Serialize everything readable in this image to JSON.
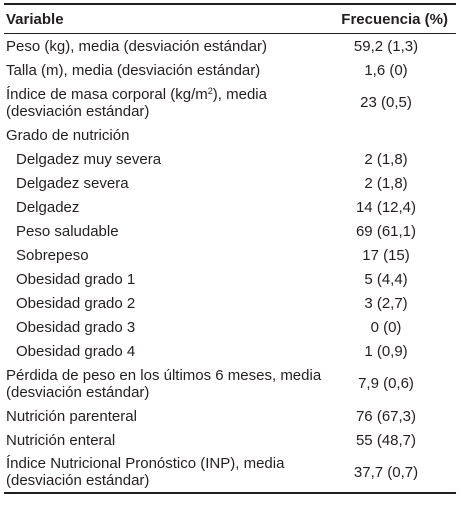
{
  "header": {
    "variable": "Variable",
    "frequency": "Frecuencia (%)"
  },
  "rows": [
    {
      "label": "Peso (kg), media (desviación estándar)",
      "value": "59,2 (1,3)"
    },
    {
      "label": "Talla (m), media (desviación estándar)",
      "value": "1,6 (0)"
    },
    {
      "label_before": "Índice de masa corporal (kg/m",
      "label_sup": "2",
      "label_after": "), media (desviación estándar)",
      "value": "23 (0,5)"
    },
    {
      "label": "Grado de nutrición",
      "value": ""
    },
    {
      "label": "Delgadez muy severa",
      "value": "2 (1,8)"
    },
    {
      "label": "Delgadez severa",
      "value": "2 (1,8)"
    },
    {
      "label": "Delgadez",
      "value": "14 (12,4)"
    },
    {
      "label": "Peso saludable",
      "value": "69 (61,1)"
    },
    {
      "label": "Sobrepeso",
      "value": "17 (15)"
    },
    {
      "label": "Obesidad grado 1",
      "value": "5 (4,4)"
    },
    {
      "label": "Obesidad grado 2",
      "value": "3 (2,7)"
    },
    {
      "label": "Obesidad grado 3",
      "value": "0 (0)"
    },
    {
      "label": "Obesidad grado 4",
      "value": "1 (0,9)"
    },
    {
      "label": "Pérdida de peso en los últimos 6 meses, media (desviación estándar)",
      "value": "7,9 (0,6)"
    },
    {
      "label": "Nutrición parenteral",
      "value": "76 (67,3)"
    },
    {
      "label": "Nutrición enteral",
      "value": "55 (48,7)"
    },
    {
      "label": "Índice Nutricional Pronóstico (INP), media (desviación estándar)",
      "value": "37,7 (0,7)"
    }
  ]
}
